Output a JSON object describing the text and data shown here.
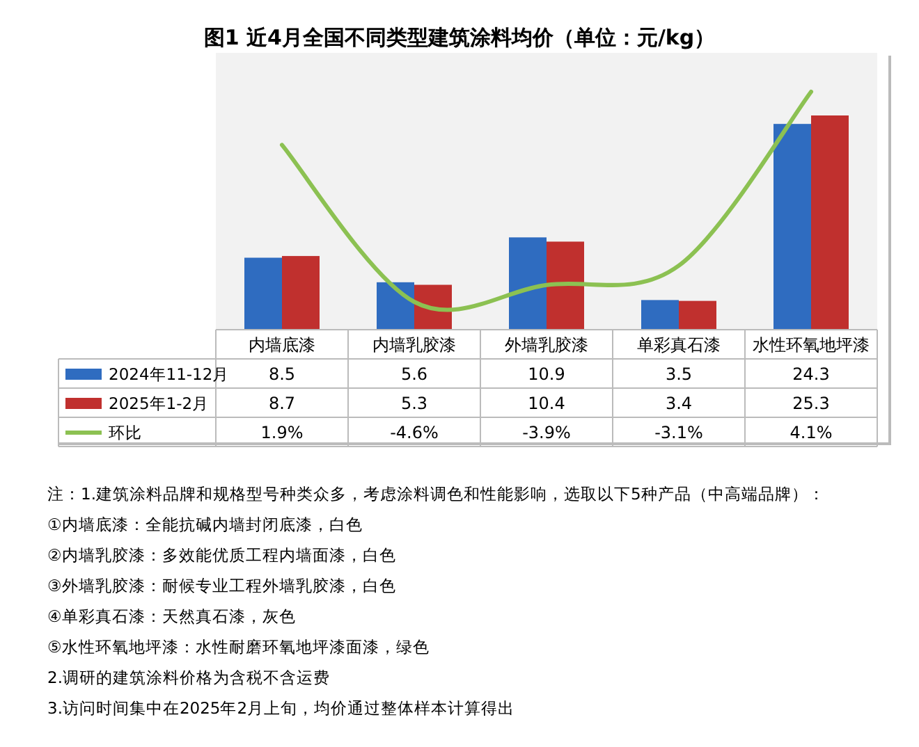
{
  "chart_data": {
    "type": "bar",
    "title": "图1 近4月全国不同类型建筑涂料均价（单位：元/kg）",
    "categories": [
      "内墙底漆",
      "内墙乳胶漆",
      "外墙乳胶漆",
      "单彩真石漆",
      "水性环氧地坪漆"
    ],
    "series": [
      {
        "name": "2024年11-12月",
        "color": "#2f6cc0",
        "values": [
          8.5,
          5.6,
          10.9,
          3.5,
          24.3
        ],
        "value_labels": [
          "8.5",
          "5.6",
          "10.9",
          "3.5",
          "24.3"
        ]
      },
      {
        "name": "2025年1-2月",
        "color": "#c0302e",
        "values": [
          8.7,
          5.3,
          10.4,
          3.4,
          25.3
        ],
        "value_labels": [
          "8.7",
          "5.3",
          "10.4",
          "3.4",
          "25.3"
        ]
      },
      {
        "name": "环比",
        "type": "line",
        "axis": "y2",
        "color": "#8cc152",
        "values": [
          1.9,
          -4.6,
          -3.9,
          -3.1,
          4.1
        ],
        "value_labels": [
          "1.9%",
          "-4.6%",
          "-3.9%",
          "-3.1%",
          "4.1%"
        ]
      }
    ],
    "legend": "bottom",
    "grid": false,
    "annotations": [
      "注：1.建筑涂料品牌和规格型号种类众多，考虑涂料调色和性能影响，选取以下5种产品（中高端品牌）：",
      "①内墙底漆：全能抗碱内墙封闭底漆，白色",
      "②内墙乳胶漆：多效能优质工程内墙面漆，白色",
      "③外墙乳胶漆：耐候专业工程外墙乳胶漆，白色",
      "④单彩真石漆：天然真石漆，灰色",
      "⑤水性环氧地坪漆：水性耐磨环氧地坪漆面漆，绿色",
      "2.调研的建筑涂料价格为含税不含运费",
      "3.访问时间集中在2025年2月上旬，均价通过整体样本计算得出"
    ]
  }
}
